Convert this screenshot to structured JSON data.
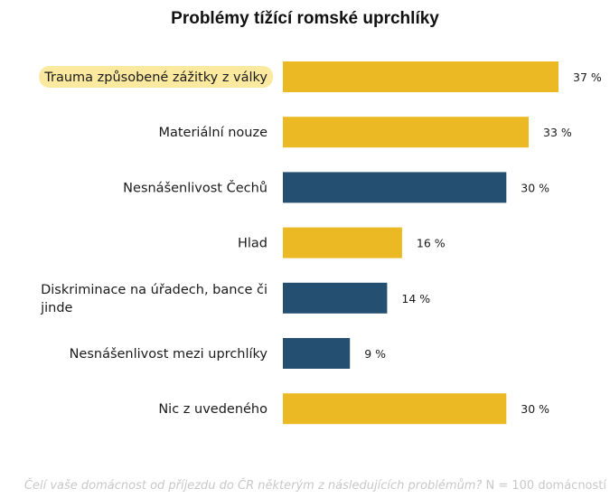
{
  "chart_data": {
    "type": "bar",
    "orientation": "horizontal",
    "title": "Problémy tížící romské uprchlíky",
    "categories": [
      "Trauma způsobené zážitky z války",
      "Materiální nouze",
      "Nesnášenlivost Čechů",
      "Hlad",
      "Diskriminace na úřadech, bance či jinde",
      "Nesnášenlivost mezi uprchlíky",
      "Nic z uvedeného"
    ],
    "values": [
      37,
      33,
      30,
      16,
      14,
      9,
      30
    ],
    "value_labels": [
      "37 %",
      "33 %",
      "30 %",
      "16 %",
      "14 %",
      "9 %",
      "30 %"
    ],
    "bar_colors": [
      "#ebb924",
      "#ebb924",
      "#254f71",
      "#ebb924",
      "#254f71",
      "#254f71",
      "#ebb924"
    ],
    "highlighted_category_index": 0,
    "highlight_color": "#fbe9a0",
    "xlim": [
      0,
      37
    ],
    "grid": false,
    "legend": "none"
  },
  "footnote": {
    "question": "Čelí vaše domácnost od příjezdu do ČR některým z následujících problémům?",
    "sample": " N = 100 domácností"
  }
}
